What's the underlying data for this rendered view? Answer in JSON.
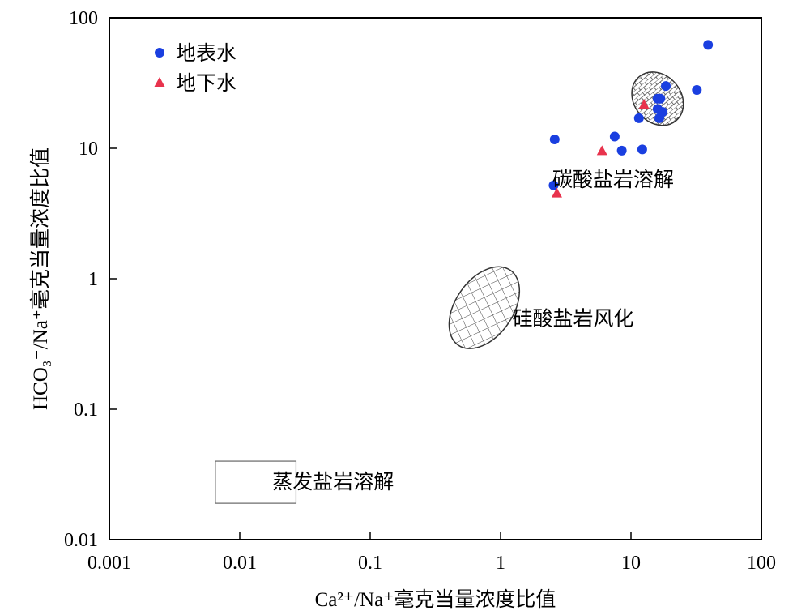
{
  "chart_data": {
    "type": "scatter",
    "xscale": "log",
    "yscale": "log",
    "xlim": [
      0.001,
      100
    ],
    "ylim": [
      0.01,
      100
    ],
    "xticks": [
      {
        "value": 0.001,
        "label": "0.001"
      },
      {
        "value": 0.01,
        "label": "0.01"
      },
      {
        "value": 0.1,
        "label": "0.1"
      },
      {
        "value": 1,
        "label": "1"
      },
      {
        "value": 10,
        "label": "10"
      },
      {
        "value": 100,
        "label": "100"
      }
    ],
    "yticks": [
      {
        "value": 0.01,
        "label": "0.01"
      },
      {
        "value": 0.1,
        "label": "0.1"
      },
      {
        "value": 1,
        "label": "1"
      },
      {
        "value": 10,
        "label": "10"
      },
      {
        "value": 100,
        "label": "100"
      }
    ],
    "xlabel": "Ca²⁺/Na⁺毫克当量浓度比值",
    "ylabel": "HCO₃⁻/Na⁺毫克当量浓度比值",
    "legend_position": "top-left",
    "series": [
      {
        "name": "地表水",
        "marker": "circle",
        "color": "#1a3fe0",
        "points": [
          {
            "x": 39,
            "y": 62
          },
          {
            "x": 32,
            "y": 28
          },
          {
            "x": 18.5,
            "y": 30
          },
          {
            "x": 16,
            "y": 24
          },
          {
            "x": 16.8,
            "y": 24
          },
          {
            "x": 16,
            "y": 20
          },
          {
            "x": 17.5,
            "y": 19
          },
          {
            "x": 11.5,
            "y": 17
          },
          {
            "x": 16.5,
            "y": 17
          },
          {
            "x": 7.5,
            "y": 12.3
          },
          {
            "x": 2.6,
            "y": 11.7
          },
          {
            "x": 8.5,
            "y": 9.6
          },
          {
            "x": 12.2,
            "y": 9.8
          },
          {
            "x": 2.55,
            "y": 5.2
          }
        ]
      },
      {
        "name": "地下水",
        "marker": "triangle",
        "color": "#e8334d",
        "points": [
          {
            "x": 12.6,
            "y": 21.5
          },
          {
            "x": 6,
            "y": 9.5
          },
          {
            "x": 2.7,
            "y": 4.5
          }
        ]
      }
    ],
    "regions": [
      {
        "name": "碳酸盐岩溶解",
        "shape": "ellipse",
        "pattern": "brick",
        "cx": 16,
        "cy": 24,
        "rx_decades": 0.18,
        "ry_decades": 0.22,
        "rotation_deg": -40
      },
      {
        "name": "硅酸盐岩风化",
        "shape": "ellipse",
        "pattern": "crosshatch",
        "cx": 0.75,
        "cy": 0.6,
        "rx_decades": 0.22,
        "ry_decades": 0.35,
        "rotation_deg": 35
      },
      {
        "name": "蒸发盐岩溶解",
        "shape": "rect",
        "pattern": "none",
        "x0": 0.0065,
        "x1": 0.027,
        "y0": 0.019,
        "y1": 0.04
      }
    ],
    "region_labels": [
      {
        "text": "碳酸盐岩溶解",
        "x": 7.3,
        "y": 5.8
      },
      {
        "text": "硅酸盐岩风化",
        "x": 3.6,
        "y": 0.5
      },
      {
        "text": "蒸发盐岩溶解",
        "x": 0.052,
        "y": 0.028
      }
    ]
  }
}
